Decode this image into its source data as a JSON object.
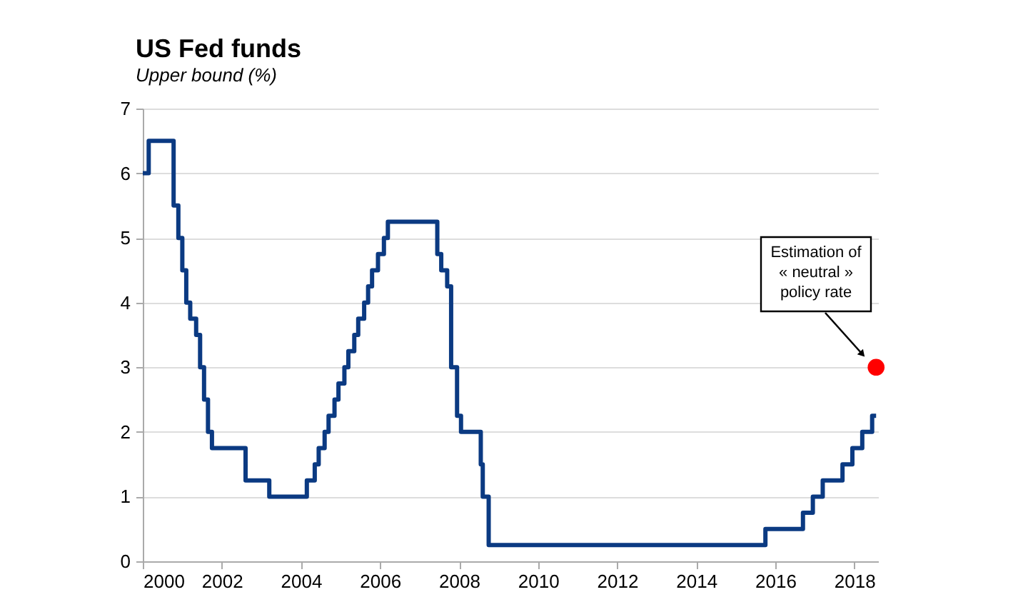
{
  "chart_data": {
    "type": "step",
    "title": "US Fed funds",
    "subtitle": "Upper bound (%)",
    "xlim": [
      2000,
      2018.6
    ],
    "xticks": [
      2000,
      2002,
      2004,
      2006,
      2008,
      2010,
      2012,
      2014,
      2016,
      2018
    ],
    "ylim": [
      0,
      7
    ],
    "yticks": [
      0,
      1,
      2,
      3,
      4,
      5,
      6,
      7
    ],
    "grid": "y",
    "marker": "none",
    "line_style": "solid",
    "series": [
      {
        "color": "#0b3a82",
        "x": [
          2000.0,
          2000.15,
          2000.78,
          2000.9,
          2001.0,
          2001.1,
          2001.2,
          2001.35,
          2001.45,
          2001.55,
          2001.65,
          2001.75,
          2002.6,
          2003.2,
          2004.15,
          2004.35,
          2004.45,
          2004.6,
          2004.7,
          2004.85,
          2004.95,
          2005.1,
          2005.2,
          2005.35,
          2005.45,
          2005.6,
          2005.7,
          2005.8,
          2005.95,
          2006.1,
          2006.2,
          2007.45,
          2007.55,
          2007.7,
          2007.8,
          2007.95,
          2008.05,
          2008.55,
          2008.6,
          2008.75,
          2015.75,
          2016.7,
          2016.95,
          2017.2,
          2017.7,
          2017.95,
          2018.2,
          2018.45,
          2018.55
        ],
        "values": [
          6,
          6.5,
          5.5,
          5.0,
          4.5,
          4.0,
          3.75,
          3.5,
          3.0,
          2.5,
          2.0,
          1.75,
          1.25,
          1.0,
          1.25,
          1.5,
          1.75,
          2.0,
          2.25,
          2.5,
          2.75,
          3.0,
          3.25,
          3.5,
          3.75,
          4.0,
          4.25,
          4.5,
          4.75,
          5.0,
          5.25,
          4.75,
          4.5,
          4.25,
          3.0,
          2.25,
          2.0,
          1.5,
          1.0,
          0.25,
          0.5,
          0.75,
          1.0,
          1.25,
          1.5,
          1.75,
          2.0,
          2.25,
          2.25
        ]
      },
      {
        "type": "scatter",
        "color": "#ff0000",
        "x": [
          2018.55
        ],
        "values": [
          3
        ],
        "marker": "circle"
      }
    ],
    "annotations": [
      "Estimation of\n« neutral »\npolicy rate"
    ]
  }
}
